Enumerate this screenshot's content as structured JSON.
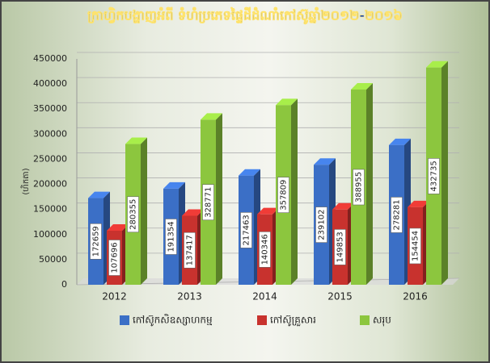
{
  "chart_data": {
    "type": "bar3d",
    "title": "ក្រាហ្វិកបង្ហាញអំពី ទំហំប្រភេទផ្ទៃដីដំណាំកៅស៊ូឆ្នាំ២០១២-២០១៦",
    "y_label": "(ហិកតា)",
    "categories": [
      "2012",
      "2013",
      "2014",
      "2015",
      "2016"
    ],
    "series": [
      {
        "name": "កៅស៊ូកសិឧស្សាហកម្ម",
        "color": "#3b6fc6",
        "values": [
          172659,
          191354,
          217463,
          239102,
          278281
        ]
      },
      {
        "name": "កៅស៊ូគ្រួសារ",
        "color": "#c8322e",
        "values": [
          107696,
          137417,
          140346,
          149853,
          154454
        ]
      },
      {
        "name": "សរុប",
        "color": "#8cc63e",
        "values": [
          280355,
          328771,
          357809,
          388955,
          432735
        ]
      }
    ],
    "ylim": [
      0,
      450000
    ],
    "yticks": [
      0,
      50000,
      100000,
      150000,
      200000,
      250000,
      300000,
      350000,
      400000,
      450000
    ],
    "grid": true,
    "legend": "bottom"
  }
}
